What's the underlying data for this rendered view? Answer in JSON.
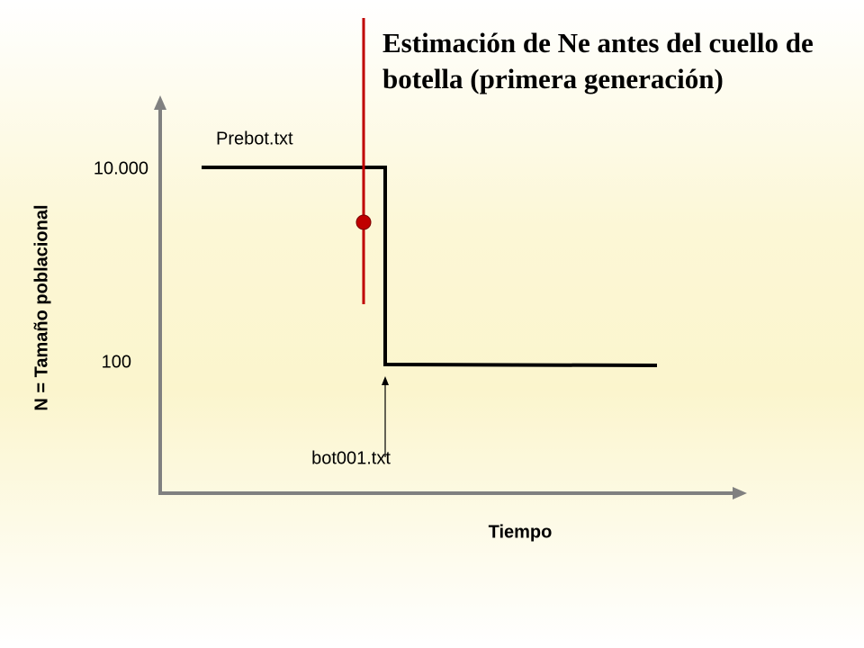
{
  "title": {
    "lines": [
      "Estimación de Ne antes del cuello de",
      "botella (primera generación)"
    ]
  },
  "y_axis": {
    "label": "N = Tamaño poblacional",
    "levels": [
      "10.000",
      "100"
    ]
  },
  "x_axis": {
    "label": "Tiempo"
  },
  "annotations": {
    "before": "Prebot.txt",
    "after": "bot001.txt"
  }
}
